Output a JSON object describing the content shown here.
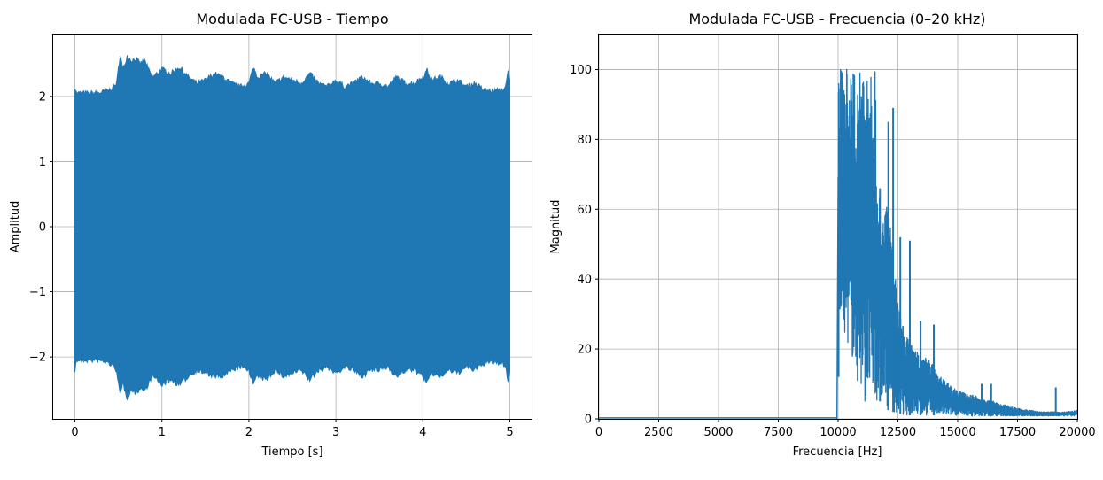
{
  "chart_data": [
    {
      "type": "area",
      "title": "Modulada FC-USB - Tiempo",
      "xlabel": "Tiempo [s]",
      "ylabel": "Amplitud",
      "xlim": [
        -0.25,
        5.25
      ],
      "ylim": [
        -2.95,
        2.95
      ],
      "xticks": [
        0,
        1,
        2,
        3,
        4,
        5
      ],
      "xtick_labels": [
        "0",
        "1",
        "2",
        "3",
        "4",
        "5"
      ],
      "yticks": [
        -2,
        -1,
        0,
        1,
        2
      ],
      "ytick_labels": [
        "−2",
        "−1",
        "0",
        "1",
        "2"
      ],
      "grid": true,
      "color": "#1f77b4",
      "envelope": {
        "t": [
          0,
          0.02,
          0.1,
          0.2,
          0.3,
          0.4,
          0.48,
          0.52,
          0.55,
          0.6,
          0.65,
          0.7,
          0.75,
          0.8,
          0.85,
          0.9,
          1.0,
          1.1,
          1.2,
          1.3,
          1.4,
          1.5,
          1.6,
          1.7,
          1.8,
          1.9,
          2.0,
          2.05,
          2.1,
          2.2,
          2.3,
          2.4,
          2.5,
          2.6,
          2.7,
          2.8,
          2.9,
          3.0,
          3.1,
          3.2,
          3.3,
          3.4,
          3.5,
          3.6,
          3.7,
          3.8,
          3.9,
          4.0,
          4.05,
          4.1,
          4.2,
          4.3,
          4.4,
          4.5,
          4.6,
          4.7,
          4.8,
          4.9,
          4.95,
          4.98,
          5.0
        ],
        "upper": [
          2.15,
          2.05,
          2.05,
          2.05,
          2.06,
          2.1,
          2.2,
          2.65,
          2.4,
          2.62,
          2.55,
          2.58,
          2.5,
          2.55,
          2.4,
          2.3,
          2.42,
          2.35,
          2.45,
          2.3,
          2.2,
          2.25,
          2.35,
          2.3,
          2.2,
          2.15,
          2.2,
          2.45,
          2.3,
          2.35,
          2.2,
          2.3,
          2.25,
          2.2,
          2.35,
          2.2,
          2.15,
          2.25,
          2.15,
          2.2,
          2.3,
          2.2,
          2.2,
          2.15,
          2.3,
          2.2,
          2.2,
          2.3,
          2.4,
          2.25,
          2.3,
          2.2,
          2.25,
          2.15,
          2.2,
          2.1,
          2.08,
          2.1,
          2.12,
          2.38,
          2.25
        ],
        "lower": [
          -2.2,
          -2.05,
          -2.05,
          -2.05,
          -2.06,
          -2.1,
          -2.2,
          -2.6,
          -2.4,
          -2.62,
          -2.5,
          -2.55,
          -2.48,
          -2.52,
          -2.4,
          -2.3,
          -2.42,
          -2.35,
          -2.43,
          -2.3,
          -2.2,
          -2.25,
          -2.3,
          -2.3,
          -2.2,
          -2.15,
          -2.2,
          -2.4,
          -2.3,
          -2.35,
          -2.2,
          -2.3,
          -2.25,
          -2.2,
          -2.35,
          -2.2,
          -2.15,
          -2.25,
          -2.15,
          -2.2,
          -2.3,
          -2.2,
          -2.2,
          -2.15,
          -2.3,
          -2.2,
          -2.2,
          -2.3,
          -2.4,
          -2.25,
          -2.3,
          -2.2,
          -2.25,
          -2.15,
          -2.2,
          -2.1,
          -2.08,
          -2.1,
          -2.12,
          -2.38,
          -2.25
        ]
      }
    },
    {
      "type": "line",
      "title": "Modulada FC-USB - Frecuencia (0–20 kHz)",
      "xlabel": "Frecuencia [Hz]",
      "ylabel": "Magnitud",
      "xlim": [
        0,
        20000
      ],
      "ylim": [
        0,
        110
      ],
      "xticks": [
        0,
        2500,
        5000,
        7500,
        10000,
        12500,
        15000,
        17500,
        20000
      ],
      "xtick_labels": [
        "0",
        "2500",
        "5000",
        "7500",
        "10000",
        "12500",
        "15000",
        "17500",
        "20000"
      ],
      "yticks": [
        0,
        20,
        40,
        60,
        80,
        100
      ],
      "ytick_labels": [
        "0",
        "20",
        "40",
        "60",
        "80",
        "100"
      ],
      "grid": true,
      "color": "#1f77b4",
      "spectrum": {
        "f": [
          0,
          9950,
          10000,
          10050,
          10200,
          10500,
          10800,
          11000,
          11300,
          11560,
          11600,
          11800,
          12000,
          12200,
          12400,
          12600,
          12800,
          13000,
          13200,
          13500,
          13800,
          14000,
          14500,
          15000,
          15500,
          16000,
          16500,
          17000,
          17500,
          18000,
          18500,
          19000,
          19500,
          20000
        ],
        "upper": [
          0.3,
          0.3,
          100,
          100,
          100,
          100,
          100,
          100,
          100,
          100,
          70,
          64,
          62,
          55,
          40,
          30,
          25,
          22,
          20,
          18,
          17,
          15,
          11,
          8,
          7,
          6,
          5,
          4,
          3,
          2.5,
          2,
          2,
          2,
          2.5
        ],
        "lower": [
          0,
          0,
          0,
          30,
          25,
          20,
          10,
          5,
          5,
          3,
          5,
          5,
          3,
          2,
          2,
          1.5,
          1,
          1,
          1,
          1,
          1,
          1,
          1,
          1,
          0.8,
          0.8,
          0.8,
          0.8,
          0.8,
          0.8,
          0.8,
          0.8,
          0.8,
          0.8
        ],
        "peaks": [
          {
            "f": 10020,
            "y": 54
          },
          {
            "f": 11750,
            "y": 66
          },
          {
            "f": 12100,
            "y": 85
          },
          {
            "f": 12300,
            "y": 89
          },
          {
            "f": 12450,
            "y": 26
          },
          {
            "f": 12600,
            "y": 52
          },
          {
            "f": 13000,
            "y": 51
          },
          {
            "f": 13450,
            "y": 28
          },
          {
            "f": 14000,
            "y": 27
          },
          {
            "f": 16000,
            "y": 10
          },
          {
            "f": 16400,
            "y": 10
          },
          {
            "f": 19100,
            "y": 9
          }
        ]
      }
    }
  ]
}
